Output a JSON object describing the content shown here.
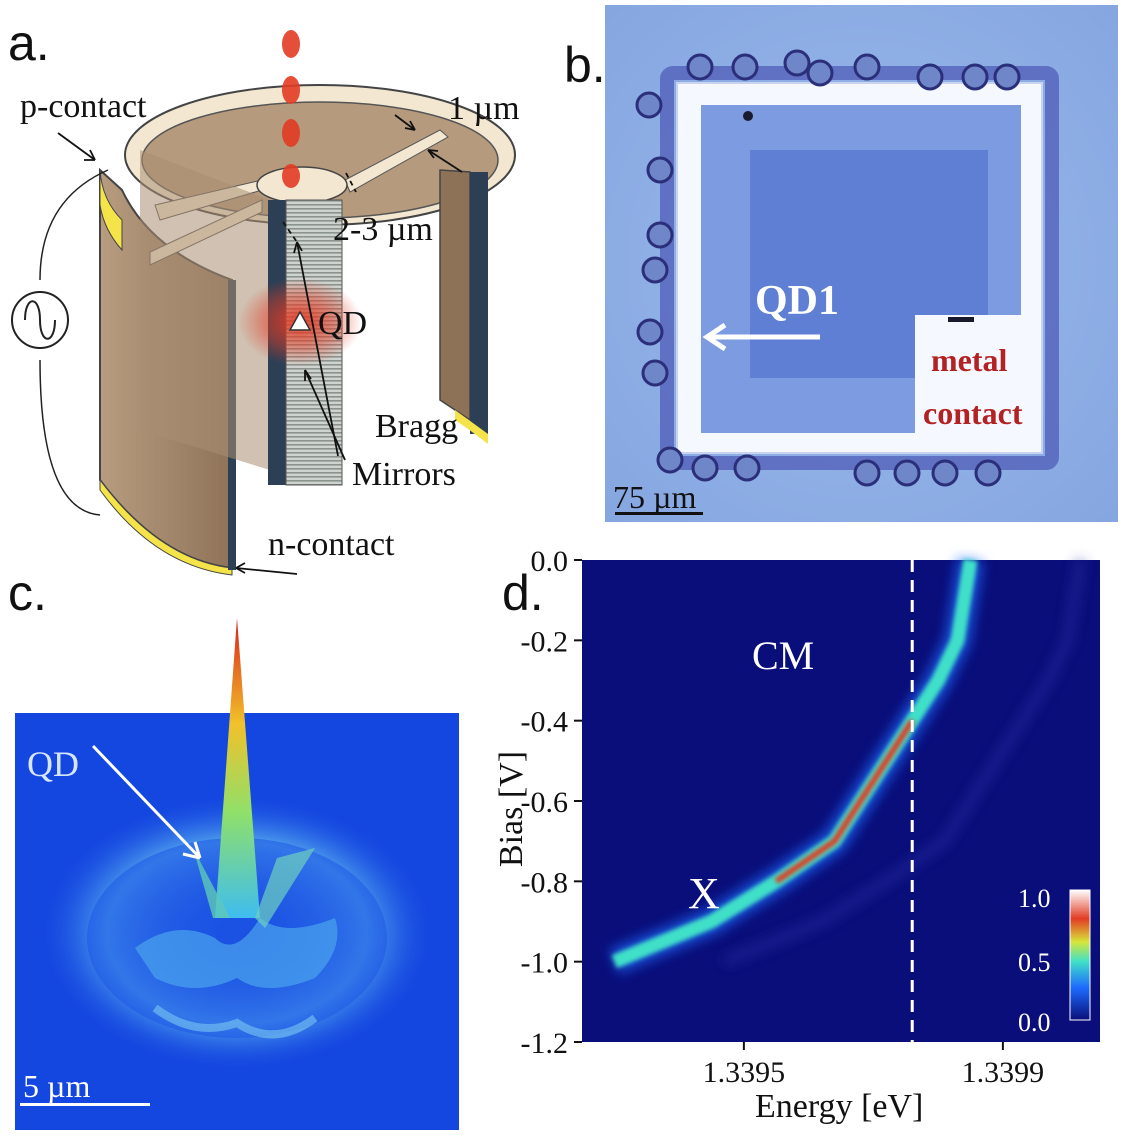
{
  "panels": {
    "a": {
      "letter": "a.",
      "labels": {
        "p_contact": "p-contact",
        "n_contact": "n-contact",
        "width_1": "1 µm",
        "width_2": "2-3 µm",
        "qd": "QD",
        "bragg": "Bragg",
        "mirrors": "Mirrors"
      },
      "icons": [
        "ac-source-icon",
        "emission-dots-icon",
        "quantum-dot-triangle-icon"
      ],
      "colors": {
        "body": "#a88d72",
        "contact": "#f5e34a",
        "rim": "#f3e7d2",
        "emission": "#e23b24"
      }
    },
    "b": {
      "letter": "b.",
      "labels": {
        "qd1": "QD1",
        "metal_line1": "metal",
        "metal_line2": "contact",
        "scale": "75 µm"
      },
      "colors": {
        "background": "#8fb0e6",
        "frame": "#f6f8ff",
        "inner": "#6c8ad6",
        "label": "#b22222"
      }
    },
    "c": {
      "letter": "c.",
      "labels": {
        "qd": "QD",
        "scale": "5 µm"
      },
      "colors": {
        "background": "#1446e0",
        "peak": "#d8201a"
      }
    },
    "d": {
      "letter": "d.",
      "labels": {
        "cm": "CM",
        "x": "X"
      },
      "colors": {
        "background": "#0a0e7a",
        "line": "#ffffff"
      },
      "chart_data": {
        "type": "heatmap",
        "xlabel": "Energy [eV]",
        "ylabel": "Bias [V]",
        "x_ticks": [
          "1.3395",
          "1.3399"
        ],
        "y_ticks": [
          "0.0",
          "-0.2",
          "-0.4",
          "-0.6",
          "-0.8",
          "-1.0",
          "-1.2"
        ],
        "ylim": [
          -1.2,
          0.0
        ],
        "xlim": [
          1.33925,
          1.34005
        ],
        "dashed_line_x": 1.33976,
        "colorbar": {
          "ticks": [
            "1.0",
            "0.5",
            "0.0"
          ],
          "range": [
            0.0,
            1.0
          ]
        },
        "emission_line": {
          "bias": [
            0.0,
            -0.2,
            -0.3,
            -0.4,
            -0.5,
            -0.6,
            -0.7,
            -0.8,
            -0.9,
            -1.0
          ],
          "energy": [
            1.33985,
            1.33983,
            1.3398,
            1.33976,
            1.33972,
            1.33968,
            1.33964,
            1.33955,
            1.33945,
            1.3393
          ]
        }
      }
    }
  }
}
